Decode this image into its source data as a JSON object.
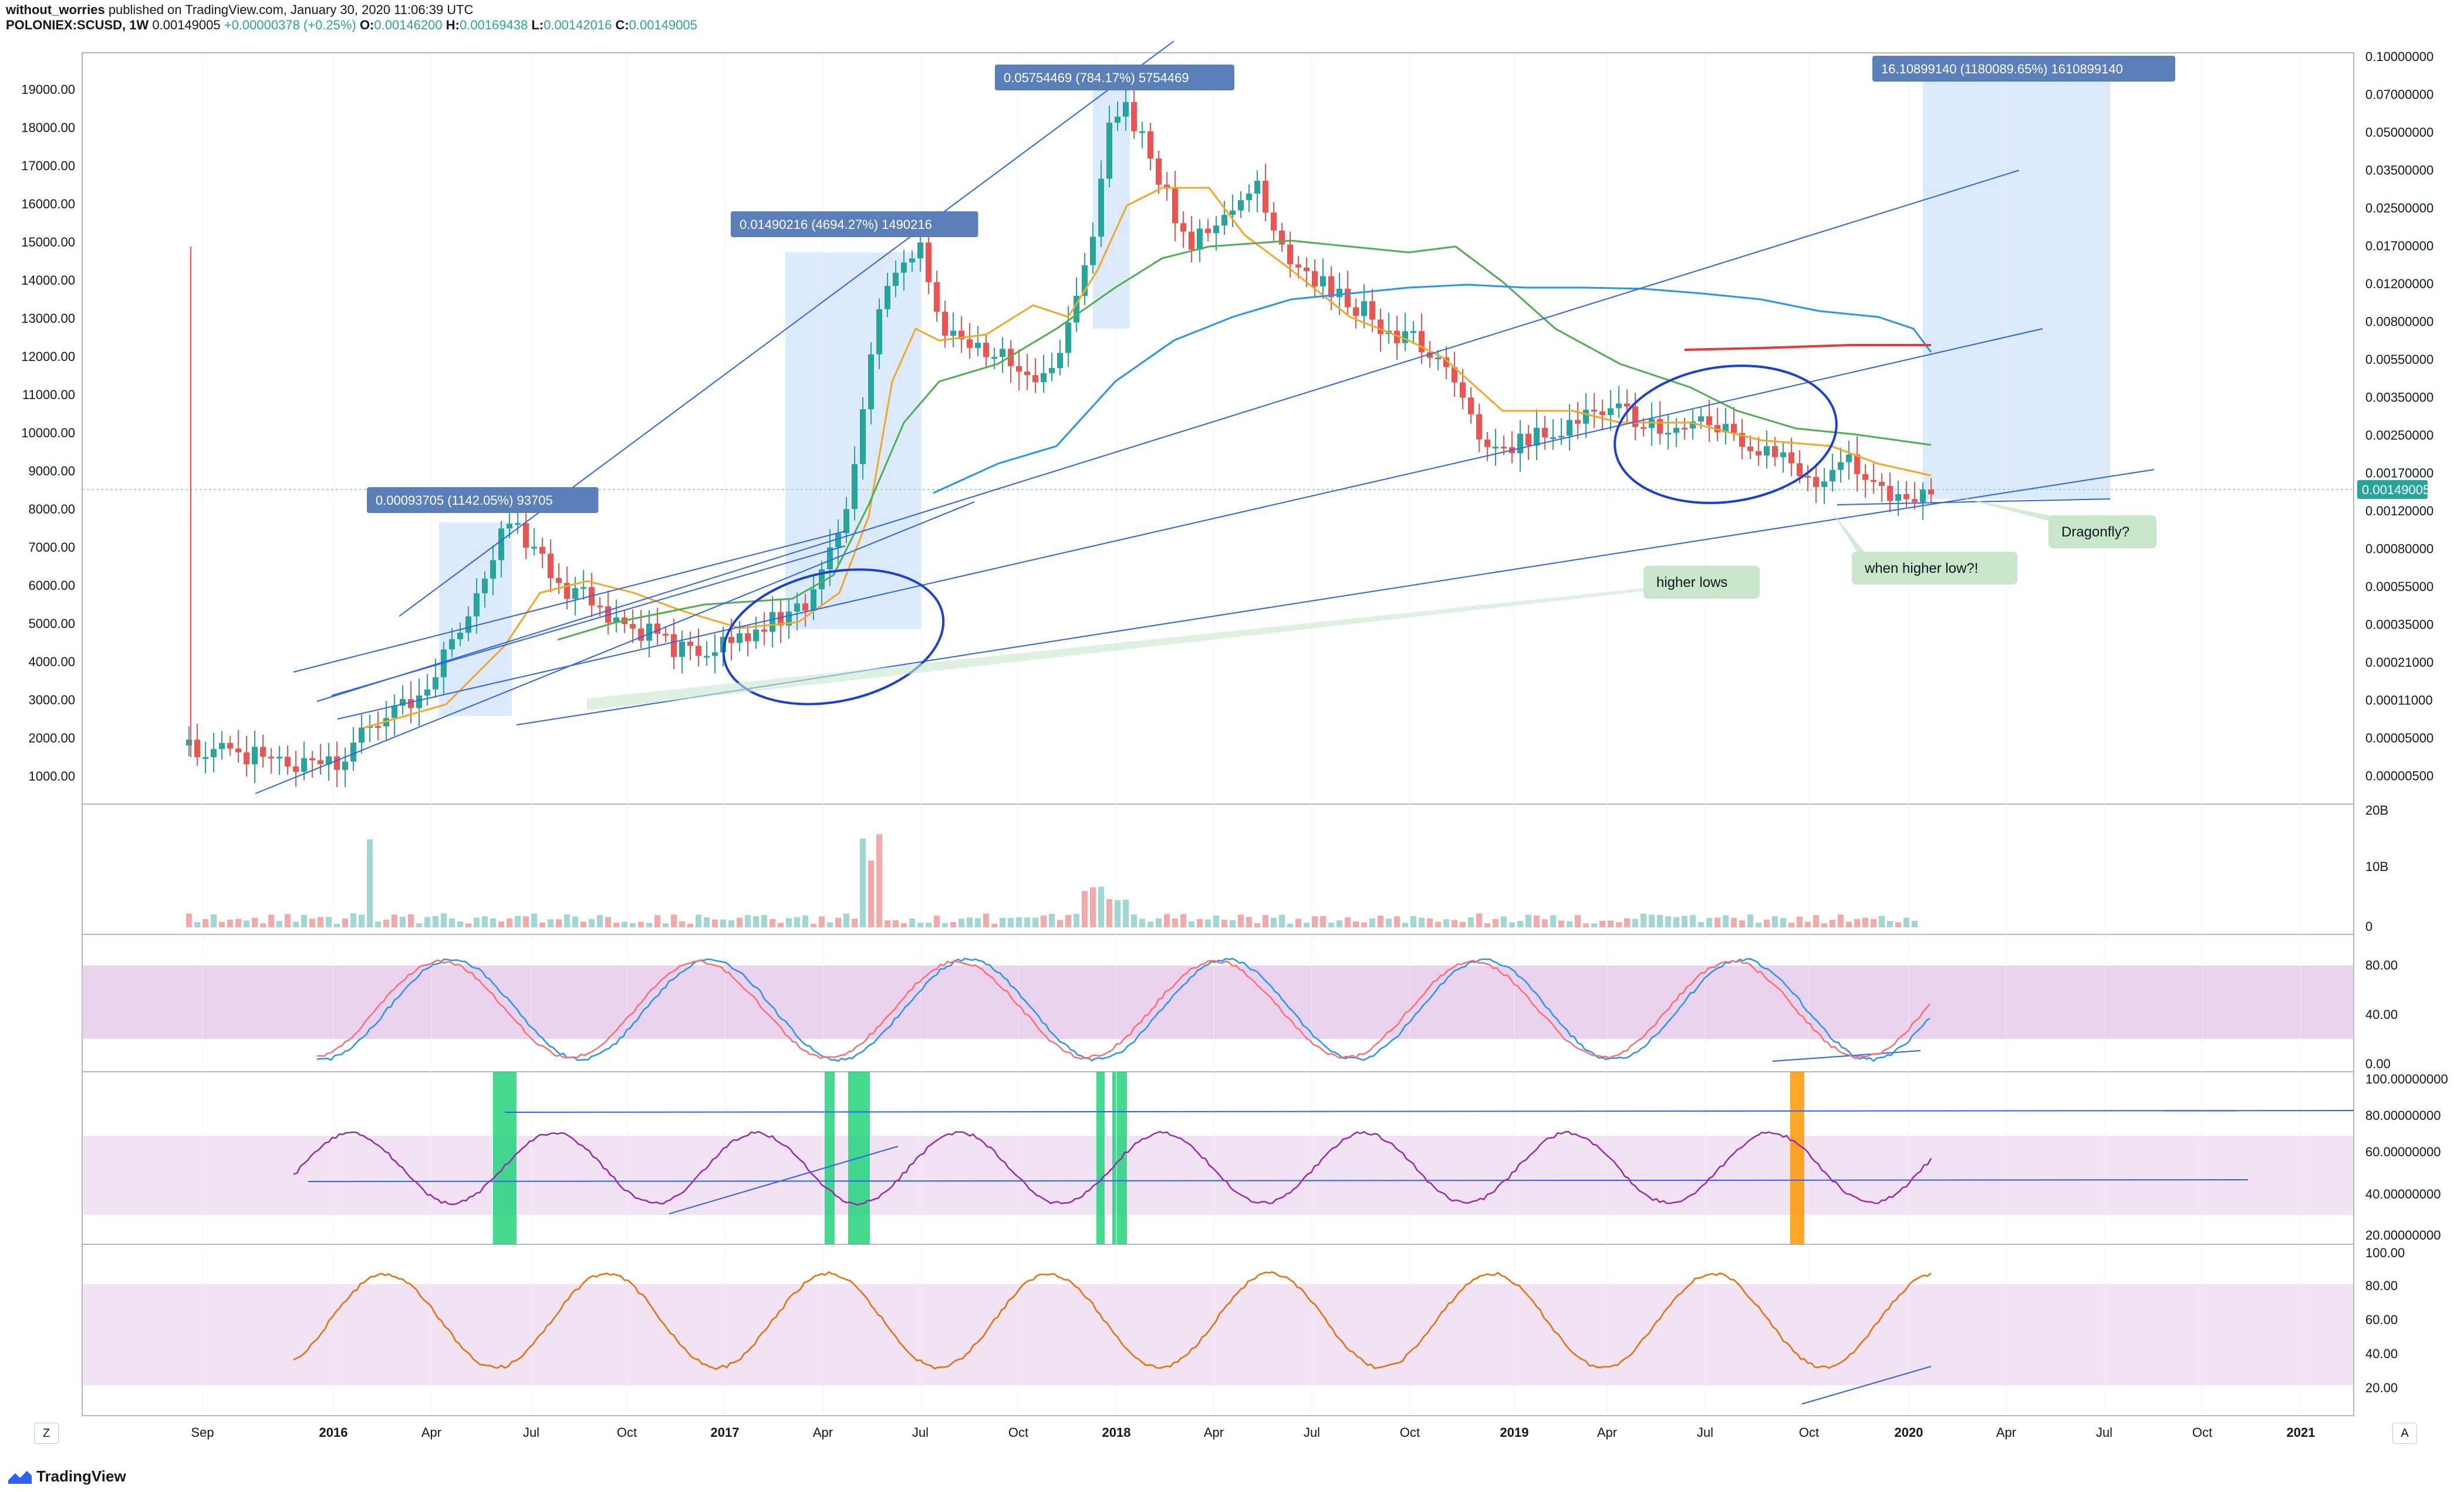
{
  "header": {
    "author": "without_worries",
    "published": "published on TradingView.com, January 30, 2020 11:06:39 UTC",
    "symbol": "POLONIEX:SCUSD, 1W",
    "last": "0.00149005",
    "change": "+0.00000378 (+0.25%)",
    "ohlc": [
      {
        "k": "O:",
        "v": "0.00146200"
      },
      {
        "k": "H:",
        "v": "0.00169438"
      },
      {
        "k": "L:",
        "v": "0.00142016"
      },
      {
        "k": "C:",
        "v": "0.00149005"
      }
    ]
  },
  "footer": {
    "brand": "TradingView",
    "left_button": "Z",
    "right_button": "A"
  },
  "colors": {
    "up": "#26a69a",
    "down": "#ef5350",
    "ema_orange": "#f5a623",
    "ma_green": "#4caf50",
    "ma_blue": "#2196f3",
    "ma_red": "#e53935",
    "trend": "#2962ff",
    "box": "#cfe3fb",
    "stoch_k": "#2196f3",
    "stoch_d": "#ff6d6d",
    "rsi": "#9c27b0",
    "rsi2": "#ef6c00",
    "green_bar": "#22d37a",
    "orange_bar": "#ff9800",
    "band": "#e1bee7",
    "label": "#5b7fb8",
    "note": "#c8e6c9"
  },
  "chart_data": [
    {
      "type": "candlestick",
      "pane": "price",
      "left_axis_labels": [
        "19000.00",
        "18000.00",
        "17000.00",
        "16000.00",
        "15000.00",
        "14000.00",
        "13000.00",
        "12000.00",
        "11000.00",
        "10000.00",
        "9000.00",
        "8000.00",
        "7000.00",
        "6000.00",
        "5000.00",
        "4000.00",
        "3000.00",
        "2000.00",
        "1000.00"
      ],
      "right_axis_labels": [
        "0.10000000",
        "0.07000000",
        "0.05000000",
        "0.03500000",
        "0.02500000",
        "0.01700000",
        "0.01200000",
        "0.00800000",
        "0.00550000",
        "0.00350000",
        "0.00250000",
        "0.00170000",
        "0.00120000",
        "0.00080000",
        "0.00055000",
        "0.00035000",
        "0.00021000",
        "0.00011000",
        "0.00005000",
        "0.00000500"
      ],
      "scale": "log",
      "last_price_label": "0.00149005",
      "x_ticks": [
        "Sep",
        "2016",
        "Apr",
        "Jul",
        "Oct",
        "2017",
        "Apr",
        "Jul",
        "Oct",
        "2018",
        "Apr",
        "Jul",
        "Oct",
        "2019",
        "Apr",
        "Jul",
        "Oct",
        "2020",
        "Apr",
        "Jul",
        "Oct",
        "2021"
      ],
      "overlays": [
        "EMA (orange)",
        "MA (green)",
        "MA (blue)",
        "MA (red)"
      ],
      "measure_labels": [
        "0.00093705 (1142.05%) 93705",
        "0.01490216 (4694.27%) 1490216",
        "0.05754469 (784.17%) 5754469",
        "16.10899140 (1180089.65%) 1610899140"
      ],
      "notes": [
        "higher lows",
        "when higher low?!",
        "Dragonfly?"
      ]
    },
    {
      "type": "bar",
      "pane": "volume",
      "y_labels": [
        "20B",
        "10B",
        "0"
      ]
    },
    {
      "type": "line",
      "pane": "stoch_rsi",
      "series": [
        {
          "name": "%K"
        },
        {
          "name": "%D"
        }
      ],
      "y_labels": [
        "80.00",
        "40.00",
        "0.00"
      ]
    },
    {
      "type": "line",
      "pane": "rsi",
      "y_labels": [
        "100.00000000",
        "80.00000000",
        "60.00000000",
        "40.00000000",
        "20.00000000"
      ]
    },
    {
      "type": "line",
      "pane": "oscillator",
      "y_labels": [
        "100.00",
        "80.00",
        "60.00",
        "40.00",
        "20.00"
      ]
    }
  ]
}
